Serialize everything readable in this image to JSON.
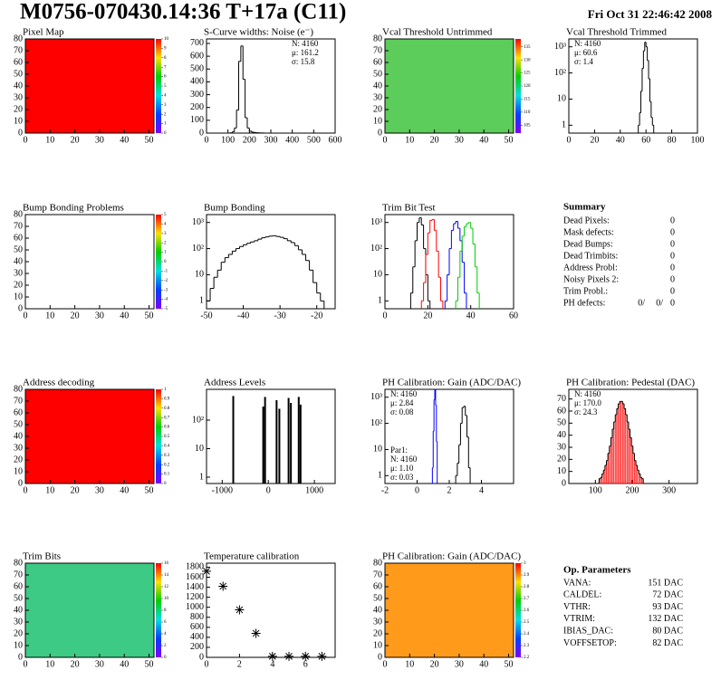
{
  "header": {
    "title": "M0756-070430.14:36 T+17a (C11)",
    "date": "Fri Oct 31 22:46:42 2008"
  },
  "panels": [
    {
      "type": "heatmap",
      "title": "Pixel Map",
      "color": "#ff0000",
      "xlim": [
        0,
        52
      ],
      "ylim": [
        0,
        80
      ],
      "xticks": [
        0,
        10,
        20,
        30,
        40,
        50
      ],
      "yticks": [
        0,
        10,
        20,
        30,
        40,
        50,
        60,
        70,
        80
      ],
      "zlim": [
        0,
        10
      ],
      "zticks": [
        0,
        1,
        2,
        3,
        4,
        5,
        6,
        7,
        8,
        9,
        10
      ]
    },
    {
      "type": "hist",
      "title": "S-Curve widths: Noise (e⁻)",
      "log": false,
      "xlim": [
        0,
        600
      ],
      "ylim": [
        0,
        735
      ],
      "xticks": [
        0,
        100,
        200,
        300,
        400,
        500,
        600
      ],
      "yticks": [
        0,
        100,
        200,
        300,
        400,
        500,
        600,
        700
      ],
      "series": [
        {
          "color": "#000000",
          "bins": [
            100,
            110,
            120,
            130,
            140,
            150,
            160,
            170,
            180,
            190,
            200,
            210,
            220,
            230,
            240,
            250,
            260,
            270,
            280,
            290,
            300
          ],
          "values": [
            0,
            2,
            10,
            40,
            180,
            560,
            680,
            420,
            120,
            40,
            15,
            8,
            5,
            3,
            2,
            1,
            1,
            0,
            0,
            0
          ]
        }
      ],
      "stats": [
        {
          "corner": "top-right",
          "lines": [
            {
              "text": "N: 4160",
              "color": "#000000"
            },
            {
              "text": "μ: 161.2",
              "color": "#000000"
            },
            {
              "text": "σ: 15.8",
              "color": "#000000"
            }
          ]
        }
      ]
    },
    {
      "type": "heatmap",
      "title": "Vcal Threshold Untrimmed",
      "color": "#5ccc5a",
      "xlim": [
        0,
        52
      ],
      "ylim": [
        0,
        80
      ],
      "xticks": [
        0,
        10,
        20,
        30,
        40,
        50
      ],
      "yticks": [
        0,
        10,
        20,
        30,
        40,
        50,
        60,
        70,
        80
      ],
      "zlim": [
        102,
        138
      ],
      "zticks": [
        105,
        110,
        115,
        120,
        125,
        130,
        135
      ]
    },
    {
      "type": "hist",
      "title": "Vcal Threshold Trimmed",
      "log": true,
      "xlim": [
        0,
        100
      ],
      "ylim": [
        0.5,
        2000
      ],
      "xticks": [
        0,
        20,
        40,
        60,
        80,
        100
      ],
      "yticks": [
        1,
        10,
        {
          "value": 100,
          "label": "10²"
        },
        {
          "value": 1000,
          "label": "10³"
        }
      ],
      "series": [
        {
          "color": "#000000",
          "bins": [
            54,
            55,
            56,
            57,
            58,
            59,
            60,
            61,
            62,
            63,
            64,
            65,
            66
          ],
          "values": [
            1,
            3,
            20,
            150,
            700,
            1500,
            1000,
            300,
            60,
            8,
            2,
            1
          ]
        }
      ],
      "stats": [
        {
          "corner": "top-left",
          "lines": [
            {
              "text": "N: 4160",
              "color": "#000000"
            },
            {
              "text": "μ: 60.6",
              "color": "#000000"
            },
            {
              "text": "σ: 1.4",
              "color": "#000000"
            }
          ]
        }
      ]
    },
    {
      "type": "heatmap",
      "title": "Bump Bonding Problems",
      "color": "#ffffff",
      "xlim": [
        0,
        52
      ],
      "ylim": [
        0,
        80
      ],
      "xticks": [
        0,
        10,
        20,
        30,
        40,
        50
      ],
      "yticks": [
        0,
        10,
        20,
        30,
        40,
        50,
        60,
        70,
        80
      ],
      "zlim": [
        -5,
        5
      ],
      "zticks": [
        -5,
        -4,
        -3,
        -2,
        -1,
        0,
        1,
        2,
        3,
        4,
        5
      ]
    },
    {
      "type": "hist",
      "title": "Bump Bonding",
      "log": true,
      "xlim": [
        -50,
        -15
      ],
      "ylim": [
        0.5,
        2000
      ],
      "xticks": [
        -50,
        -40,
        -30,
        -20
      ],
      "yticks": [
        1,
        10,
        {
          "value": 100,
          "label": "10²"
        },
        {
          "value": 1000,
          "label": "10³"
        }
      ],
      "series": [
        {
          "color": "#000000",
          "bins": [
            -50,
            -49,
            -48,
            -47,
            -46,
            -45,
            -44,
            -43,
            -42,
            -41,
            -40,
            -39,
            -38,
            -37,
            -36,
            -35,
            -34,
            -33,
            -32,
            -31,
            -30,
            -29,
            -28,
            -27,
            -26,
            -25,
            -24,
            -23,
            -22,
            -21,
            -20,
            -19,
            -18
          ],
          "values": [
            1,
            3,
            8,
            15,
            30,
            45,
            60,
            80,
            100,
            120,
            140,
            160,
            180,
            200,
            230,
            260,
            280,
            300,
            310,
            290,
            270,
            240,
            200,
            170,
            130,
            90,
            60,
            35,
            15,
            5,
            2,
            1
          ]
        }
      ]
    },
    {
      "type": "hist",
      "title": "Trim Bit Test",
      "log": true,
      "xlim": [
        0,
        60
      ],
      "ylim": [
        0.5,
        2000
      ],
      "xticks": [
        0,
        20,
        40,
        60
      ],
      "yticks": [
        1,
        10,
        {
          "value": 100,
          "label": "10²"
        },
        {
          "value": 1000,
          "label": "10³"
        }
      ],
      "series": [
        {
          "color": "#000000",
          "bins": [
            12,
            13,
            14,
            15,
            16,
            17,
            18,
            19,
            20,
            21
          ],
          "values": [
            2,
            20,
            200,
            1000,
            1500,
            800,
            100,
            10,
            1
          ]
        },
        {
          "color": "#ff0000",
          "bins": [
            17,
            18,
            19,
            20,
            21,
            22,
            23,
            24,
            25,
            26,
            27
          ],
          "values": [
            1,
            5,
            60,
            400,
            1200,
            1300,
            500,
            80,
            8,
            1
          ]
        },
        {
          "color": "#0000ff",
          "bins": [
            28,
            29,
            30,
            31,
            32,
            33,
            34,
            35,
            36,
            37,
            38
          ],
          "values": [
            1,
            10,
            100,
            500,
            900,
            1100,
            600,
            200,
            30,
            2
          ]
        },
        {
          "color": "#00cc00",
          "bins": [
            33,
            34,
            35,
            36,
            37,
            38,
            39,
            40,
            41,
            42,
            43,
            44
          ],
          "values": [
            1,
            8,
            80,
            300,
            700,
            900,
            1000,
            600,
            150,
            20,
            2
          ]
        }
      ]
    },
    {
      "type": "summary",
      "title": "Summary",
      "rows": [
        {
          "label": "Dead Pixels:",
          "value": 0
        },
        {
          "label": "Mask defects:",
          "value": 0
        },
        {
          "label": "Dead Bumps:",
          "value": 0
        },
        {
          "label": "Dead Trimbits:",
          "value": 0
        },
        {
          "label": "Address Probl:",
          "value": 0
        },
        {
          "label": "Noisy Pixels 2:",
          "value": 0
        },
        {
          "label": "Trim Probl.:",
          "value": 0
        }
      ],
      "ph_defects": {
        "label": "PH defects:",
        "values": [
          0,
          0,
          0
        ],
        "value_labels": [
          "0/",
          "0/",
          "0"
        ],
        "colors": [
          "#000000",
          "#ff0000",
          "#0000ff"
        ]
      }
    },
    {
      "type": "heatmap",
      "title": "Address decoding",
      "color": "#ff0000",
      "xlim": [
        0,
        52
      ],
      "ylim": [
        0,
        80
      ],
      "xticks": [
        0,
        10,
        20,
        30,
        40,
        50
      ],
      "yticks": [
        0,
        10,
        20,
        30,
        40,
        50,
        60,
        70,
        80
      ],
      "zlim": [
        0,
        1
      ],
      "zticks": [
        0,
        0.1,
        0.2,
        0.3,
        0.4,
        0.5,
        0.6,
        0.7,
        0.8,
        0.9,
        1
      ]
    },
    {
      "type": "bars",
      "title": "Address Levels",
      "log": true,
      "xlim": [
        -1340,
        1450
      ],
      "ylim": [
        0.6,
        1200
      ],
      "xticks": [
        -1000,
        0,
        1000
      ],
      "yticks": [
        1,
        10,
        {
          "value": 100,
          "label": "10²"
        }
      ],
      "color": "#000000",
      "x": [
        -760,
        -110,
        -70,
        180,
        240,
        440,
        490,
        660,
        700
      ],
      "values": [
        700,
        300,
        650,
        500,
        250,
        600,
        400,
        650,
        350
      ]
    },
    {
      "type": "hist",
      "title": "PH Calibration: Gain (ADC/DAC)",
      "log": true,
      "xlim": [
        -2,
        6
      ],
      "ylim": [
        0.5,
        2000
      ],
      "xticks": [
        -2,
        0,
        2,
        4
      ],
      "yticks": [
        1,
        10,
        {
          "value": 100,
          "label": "10²"
        },
        {
          "value": 1000,
          "label": "10³"
        }
      ],
      "series": [
        {
          "color": "#000000",
          "bins": [
            2.4,
            2.5,
            2.6,
            2.7,
            2.8,
            2.9,
            3.0,
            3.1,
            3.2,
            3.3
          ],
          "values": [
            1,
            3,
            15,
            100,
            400,
            450,
            200,
            30,
            2
          ]
        },
        {
          "color": "#0000ff",
          "bins": [
            0.95,
            1.0,
            1.05,
            1.1,
            1.15,
            1.2,
            1.25
          ],
          "values": [
            2,
            50,
            800,
            2000,
            500,
            20
          ]
        }
      ],
      "stats": [
        {
          "corner": "top-left",
          "lines": [
            {
              "text": "N: 4160",
              "color": "#000000"
            },
            {
              "text": "μ: 2.84",
              "color": "#000000"
            },
            {
              "text": "σ: 0.08",
              "color": "#000000"
            }
          ]
        },
        {
          "corner": "bottom-left",
          "lines": [
            {
              "text": "Par1:",
              "color": "#0000ff"
            },
            {
              "text": "N: 4160",
              "color": "#0000ff"
            },
            {
              "text": "μ: 1.10",
              "color": "#0000ff"
            },
            {
              "text": "σ: 0.03",
              "color": "#0000ff"
            }
          ]
        }
      ]
    },
    {
      "type": "hist",
      "title": "PH Calibration: Pedestal (DAC)",
      "log": false,
      "xlim": [
        28,
        377
      ],
      "ylim": [
        0,
        78
      ],
      "xticks": [
        100,
        200,
        300
      ],
      "yticks": [
        0,
        10,
        20,
        30,
        40,
        50,
        60,
        70
      ],
      "series": [
        {
          "color": "#000000",
          "fill": "#ff0000",
          "bins": [
            110,
            114,
            118,
            122,
            126,
            130,
            134,
            138,
            142,
            146,
            150,
            154,
            158,
            162,
            166,
            170,
            174,
            178,
            182,
            186,
            190,
            194,
            198,
            202,
            206,
            210,
            214,
            218,
            222,
            226,
            230
          ],
          "values": [
            4,
            5,
            8,
            11,
            15,
            19,
            25,
            31,
            38,
            45,
            51,
            57,
            62,
            66,
            68,
            68,
            66,
            62,
            57,
            51,
            45,
            38,
            31,
            25,
            19,
            15,
            11,
            8,
            5,
            4
          ]
        }
      ],
      "stats": [
        {
          "corner": "top-left",
          "lines": [
            {
              "text": "N: 4160",
              "color": "#000000"
            },
            {
              "text": "μ: 170.0",
              "color": "#ff0000"
            },
            {
              "text": "σ: 24.3",
              "color": "#ff0000"
            }
          ]
        }
      ]
    },
    {
      "type": "heatmap",
      "title": "Trim Bits",
      "color": "#3dca84",
      "xlim": [
        0,
        52
      ],
      "ylim": [
        0,
        80
      ],
      "xticks": [
        0,
        10,
        20,
        30,
        40,
        50
      ],
      "yticks": [
        0,
        10,
        20,
        30,
        40,
        50,
        60,
        70,
        80
      ],
      "zlim": [
        0,
        16
      ],
      "zticks": [
        0,
        2,
        4,
        6,
        8,
        10,
        12,
        14,
        16
      ]
    },
    {
      "type": "scatter",
      "title": "Temperature calibration",
      "log": false,
      "xlim": [
        0,
        7.8
      ],
      "ylim": [
        0,
        1880
      ],
      "xticks": [
        0,
        2,
        4,
        6
      ],
      "yticks": [
        0,
        200,
        400,
        600,
        800,
        1000,
        1200,
        1400,
        1600,
        1800
      ],
      "color": "#000000",
      "x": [
        0,
        1,
        2,
        3,
        4,
        5,
        6,
        7
      ],
      "values": [
        1720,
        1420,
        950,
        480,
        20,
        20,
        20,
        20
      ]
    },
    {
      "type": "heatmap",
      "title": "PH Calibration: Gain (ADC/DAC)",
      "color": "#ff9a1a",
      "xlim": [
        0,
        52
      ],
      "ylim": [
        0,
        80
      ],
      "xticks": [
        0,
        10,
        20,
        30,
        40,
        50
      ],
      "yticks": [
        0,
        10,
        20,
        30,
        40,
        50,
        60,
        70,
        80
      ],
      "zlim": [
        2.2,
        3
      ],
      "zticks": [
        2.2,
        2.3,
        2.4,
        2.5,
        2.6,
        2.7,
        2.8,
        2.9,
        3
      ]
    },
    {
      "type": "parameters",
      "title": "Op. Parameters",
      "rows": [
        {
          "label": "VANA:",
          "value": 151,
          "value_label": "151 DAC"
        },
        {
          "label": "CALDEL:",
          "value": 72,
          "value_label": "72 DAC"
        },
        {
          "label": "VTHR:",
          "value": 93,
          "value_label": "93 DAC"
        },
        {
          "label": "VTRIM:",
          "value": 132,
          "value_label": "132 DAC"
        },
        {
          "label": "IBIAS_DAC:",
          "value": 80,
          "value_label": "80 DAC"
        },
        {
          "label": "VOFFSETOP:",
          "value": 82,
          "value_label": "82 DAC"
        }
      ]
    }
  ]
}
